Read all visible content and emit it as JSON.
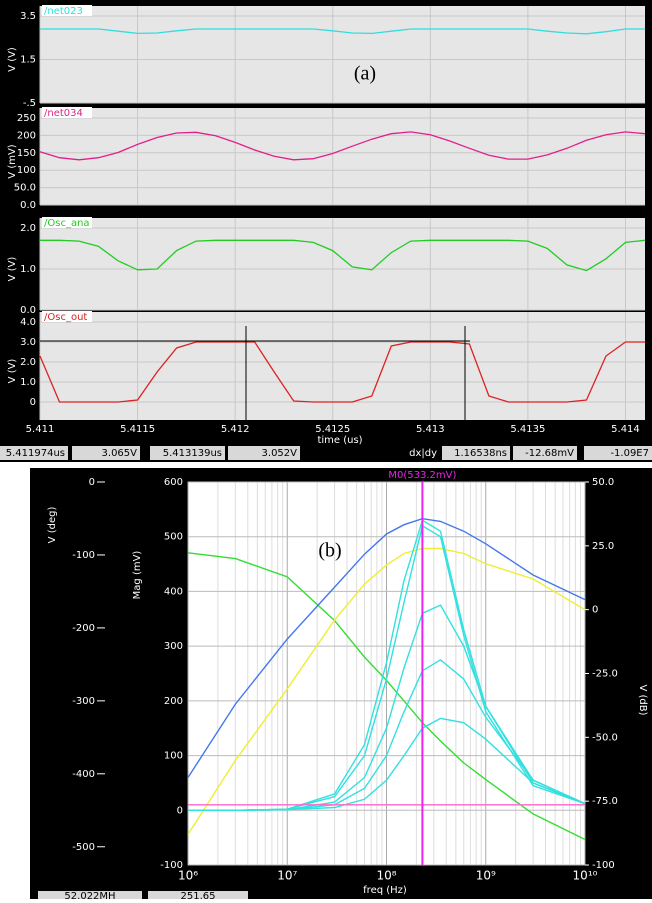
{
  "chart_data": [
    {
      "type": "line",
      "annotation": "(a)",
      "xlabel": "time (us)",
      "xlim": [
        5.411,
        5.4141
      ],
      "xticks": [
        5.411,
        5.4115,
        5.412,
        5.4125,
        5.413,
        5.4135,
        5.414
      ],
      "x": [
        5.411,
        5.4111,
        5.4112,
        5.4113,
        5.4114,
        5.4115,
        5.4116,
        5.4117,
        5.4118,
        5.4119,
        5.412,
        5.4121,
        5.4122,
        5.4123,
        5.4124,
        5.4125,
        5.4126,
        5.4127,
        5.4128,
        5.4129,
        5.413,
        5.4131,
        5.4132,
        5.4133,
        5.4134,
        5.4135,
        5.4136,
        5.4137,
        5.4138,
        5.4139,
        5.414,
        5.4141
      ],
      "panels": [
        {
          "name": "/net023",
          "color": "#33dddd",
          "ylabel": "V (V)",
          "ylim": [
            -0.5,
            3.5
          ],
          "yticks": [
            3.5,
            1.5,
            {
              "value": -0.5,
              "label": "-.5"
            }
          ],
          "values": [
            2.9,
            2.9,
            2.9,
            2.9,
            2.8,
            2.7,
            2.72,
            2.82,
            2.9,
            2.9,
            2.9,
            2.9,
            2.9,
            2.9,
            2.9,
            2.82,
            2.72,
            2.7,
            2.8,
            2.9,
            2.9,
            2.9,
            2.9,
            2.9,
            2.9,
            2.9,
            2.8,
            2.72,
            2.68,
            2.78,
            2.9,
            2.9
          ]
        },
        {
          "name": "/net034",
          "color": "#e0208a",
          "ylabel": "V (mV)",
          "ylim": [
            0,
            250
          ],
          "yticks": [
            250,
            200,
            150,
            100,
            {
              "value": 50,
              "label": "50.0"
            },
            {
              "value": 0,
              "label": "0.0"
            }
          ],
          "values": [
            153,
            136,
            130,
            136,
            151,
            174,
            194,
            207,
            209,
            199,
            180,
            158,
            140,
            130,
            133,
            148,
            169,
            189,
            205,
            210,
            202,
            184,
            163,
            143,
            132,
            132,
            144,
            163,
            186,
            202,
            210,
            205
          ]
        },
        {
          "name": "/Osc_ana",
          "color": "#22cc22",
          "ylabel": "V (V)",
          "ylim": [
            0,
            2
          ],
          "yticks": [
            {
              "value": 2,
              "label": "2.0"
            },
            {
              "value": 1,
              "label": "1.0"
            },
            {
              "value": 0,
              "label": "0.0"
            }
          ],
          "values": [
            1.7,
            1.7,
            1.68,
            1.55,
            1.2,
            0.98,
            1.0,
            1.45,
            1.68,
            1.7,
            1.7,
            1.7,
            1.7,
            1.7,
            1.65,
            1.45,
            1.05,
            0.98,
            1.4,
            1.68,
            1.7,
            1.7,
            1.7,
            1.7,
            1.7,
            1.68,
            1.5,
            1.1,
            0.96,
            1.25,
            1.65,
            1.7
          ]
        },
        {
          "name": "/Osc_out",
          "color": "#dd2222",
          "ylabel": "V (V)",
          "ylim": [
            -0.9,
            4
          ],
          "yticks": [
            {
              "value": 4,
              "label": "4.0"
            },
            {
              "value": 3,
              "label": "3.0"
            },
            {
              "value": 2,
              "label": "2.0"
            },
            {
              "value": 1,
              "label": "1.0"
            },
            0
          ],
          "values": [
            2.3,
            0,
            0,
            0,
            0,
            0.1,
            1.5,
            2.7,
            3,
            3,
            3,
            3,
            1.5,
            0.05,
            0,
            0,
            0,
            0.3,
            2.8,
            3,
            3,
            3,
            2.9,
            0.3,
            0,
            0,
            0,
            0,
            0.1,
            2.3,
            3,
            3
          ]
        }
      ],
      "status": [
        "5.411974us",
        "3.065V",
        "5.413139us",
        "3.052V",
        "dx|dy",
        "1.16538ns",
        "-12.68mV",
        "-1.09E7"
      ]
    },
    {
      "type": "line",
      "annotation": "(b)",
      "xlabel": "freq (Hz)",
      "marker_label": "M0(533.2mV)",
      "marker_x": 230000000,
      "log_x": true,
      "xlim": [
        1000000,
        10000000000
      ],
      "xticks": [
        {
          "value": 1000000,
          "label": "10⁶"
        },
        {
          "value": 10000000,
          "label": "10⁷"
        },
        {
          "value": 100000000,
          "label": "10⁸"
        },
        {
          "value": 1000000000,
          "label": "10⁹"
        },
        {
          "value": 10000000000,
          "label": "10¹⁰"
        }
      ],
      "ylabel": "Mag (mV)",
      "ylim": [
        -100,
        600
      ],
      "yticks": [
        600,
        500,
        400,
        300,
        200,
        100,
        0,
        -100
      ],
      "y2label": "V (dB)",
      "y2lim": [
        -100,
        50
      ],
      "y2ticks": [
        {
          "value": 50,
          "label": "50.0"
        },
        {
          "value": 25,
          "label": "25.0"
        },
        0,
        {
          "value": -25,
          "label": "-25.0"
        },
        {
          "value": -50,
          "label": "-50.0"
        },
        {
          "value": -75,
          "label": "-75.0"
        },
        -100
      ],
      "y3label": "V (deg)",
      "y3lim": [
        -525,
        0
      ],
      "y3ticks": [
        0,
        -100,
        -200,
        -300,
        -400,
        -500
      ],
      "x": [
        1000000,
        3000000,
        10000000,
        30000000,
        60000000,
        100000000,
        150000000,
        230000000,
        350000000,
        600000000,
        1000000000,
        3000000000,
        10000000000
      ],
      "series": [
        {
          "color": "#33dd33",
          "axis": "y3",
          "values": [
            -97,
            -105,
            -130,
            -190,
            -240,
            -272,
            -300,
            -330,
            -355,
            -385,
            -408,
            -455,
            -490
          ]
        },
        {
          "color": "#4477ee",
          "values": [
            60,
            194,
            313,
            408,
            468,
            505,
            522,
            533,
            528,
            510,
            487,
            430,
            385
          ]
        },
        {
          "color": "#eeee33",
          "axis": "y2",
          "values": [
            -88,
            -59,
            -31,
            -4,
            10,
            17.5,
            22,
            24,
            24,
            22,
            18,
            12,
            0
          ]
        },
        {
          "color": "#33e0e0",
          "values": [
            0,
            0,
            2,
            30,
            120,
            270,
            420,
            530,
            510,
            330,
            190,
            50,
            12
          ]
        },
        {
          "color": "#33e0e0",
          "values": [
            0,
            0,
            2,
            25,
            100,
            240,
            380,
            520,
            500,
            320,
            180,
            45,
            12
          ]
        },
        {
          "color": "#33e0e0",
          "values": [
            0,
            0,
            1,
            15,
            60,
            150,
            260,
            360,
            375,
            300,
            190,
            55,
            12
          ]
        },
        {
          "color": "#33e0e0",
          "values": [
            0,
            0,
            1,
            10,
            40,
            100,
            180,
            255,
            275,
            240,
            170,
            55,
            12
          ]
        },
        {
          "color": "#33e0e0",
          "values": [
            0,
            0,
            1,
            5,
            20,
            55,
            100,
            150,
            168,
            160,
            130,
            50,
            12
          ]
        },
        {
          "color": "#ff66cc",
          "values": [
            10,
            10,
            10,
            10,
            10,
            10,
            10,
            10,
            10,
            10,
            10,
            10,
            10
          ]
        }
      ],
      "status": [
        "52.022MH",
        "251.65"
      ]
    }
  ]
}
